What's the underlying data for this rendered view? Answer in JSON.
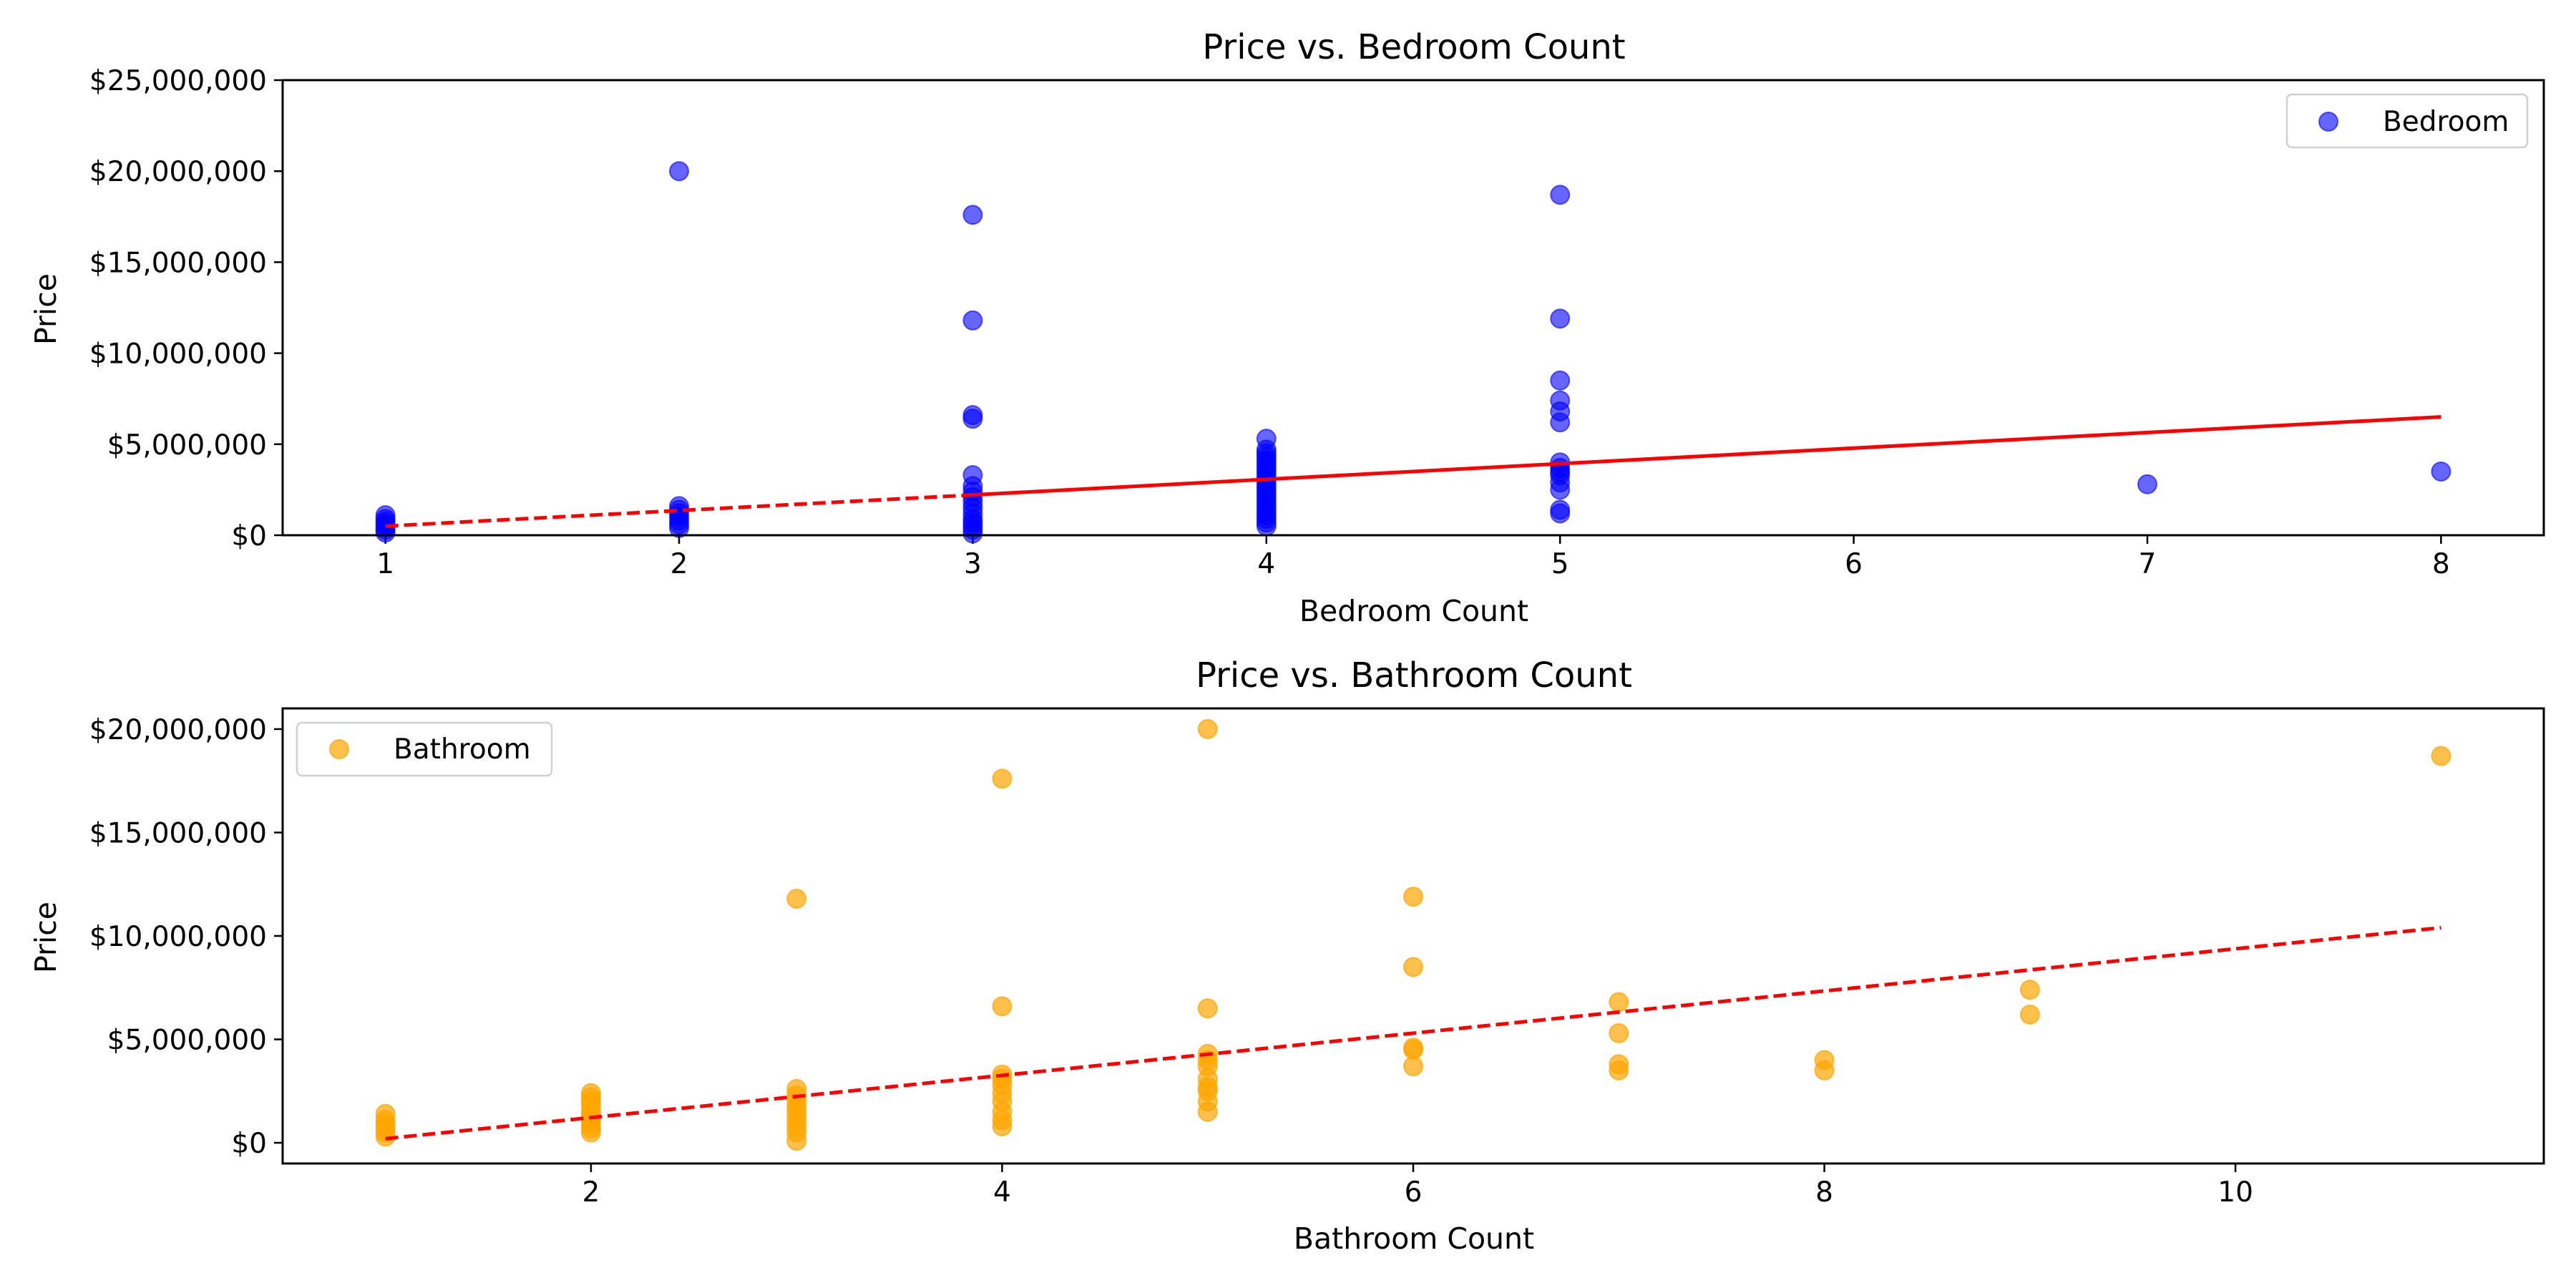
{
  "chart_data": [
    {
      "type": "scatter",
      "title": "Price vs. Bedroom Count",
      "xlabel": "Bedroom Count",
      "ylabel": "Price",
      "xlim": [
        0.65,
        8.35
      ],
      "ylim": [
        0,
        25000000
      ],
      "xticks": [
        1,
        2,
        3,
        4,
        5,
        6,
        7,
        8
      ],
      "yticks": [
        0,
        5000000,
        10000000,
        15000000,
        20000000,
        25000000
      ],
      "ytick_labels": [
        "$0",
        "$5,000,000",
        "$10,000,000",
        "$15,000,000",
        "$20,000,000",
        "$25,000,000"
      ],
      "grid": false,
      "legend": {
        "position": "top-right",
        "entries": [
          "Bedroom"
        ]
      },
      "series": [
        {
          "name": "Bedroom",
          "color": "#0000ff",
          "x": [
            1,
            1,
            1,
            1,
            1,
            1,
            1,
            2,
            2,
            2,
            2,
            2,
            2,
            2,
            2,
            3,
            3,
            3,
            3,
            3,
            3,
            3,
            3,
            3,
            3,
            3,
            3,
            3,
            3,
            3,
            3,
            4,
            4,
            4,
            4,
            4,
            4,
            4,
            4,
            4,
            4,
            4,
            4,
            4,
            4,
            4,
            4,
            4,
            4,
            4,
            4,
            4,
            4,
            4,
            5,
            5,
            5,
            5,
            5,
            5,
            5,
            5,
            5,
            5,
            5,
            5,
            5,
            5,
            7,
            8
          ],
          "y": [
            1100000,
            900000,
            750000,
            600000,
            450000,
            300000,
            150000,
            20000000,
            1600000,
            1400000,
            1200000,
            1000000,
            800000,
            600000,
            400000,
            17600000,
            11800000,
            6600000,
            6400000,
            3300000,
            2700000,
            2400000,
            2100000,
            1800000,
            1500000,
            1200000,
            900000,
            700000,
            500000,
            300000,
            100000,
            5300000,
            4700000,
            4500000,
            4300000,
            4100000,
            3900000,
            3700000,
            3500000,
            3300000,
            3100000,
            2900000,
            2700000,
            2500000,
            2300000,
            2100000,
            1900000,
            1700000,
            1500000,
            1300000,
            1100000,
            900000,
            700000,
            500000,
            18700000,
            11900000,
            8500000,
            7400000,
            6800000,
            6200000,
            4000000,
            3700000,
            3500000,
            3300000,
            2900000,
            2500000,
            1400000,
            1200000,
            2800000,
            3500000
          ]
        }
      ],
      "trend_line": {
        "color": "#ff0000",
        "x": [
          1,
          8
        ],
        "y": [
          500000,
          6500000
        ]
      }
    },
    {
      "type": "scatter",
      "title": "Price vs. Bathroom Count",
      "xlabel": "Bathroom Count",
      "ylabel": "Price",
      "xlim": [
        0.5,
        11.5
      ],
      "ylim": [
        -1000000,
        21000000
      ],
      "xticks": [
        2,
        4,
        6,
        8,
        10
      ],
      "yticks": [
        0,
        5000000,
        10000000,
        15000000,
        20000000
      ],
      "ytick_labels": [
        "$0",
        "$5,000,000",
        "$10,000,000",
        "$15,000,000",
        "$20,000,000"
      ],
      "grid": false,
      "legend": {
        "position": "top-left",
        "entries": [
          "Bathroom"
        ]
      },
      "series": [
        {
          "name": "Bathroom",
          "color": "#ffa500",
          "x": [
            1,
            1,
            1,
            1,
            1,
            1,
            2,
            2,
            2,
            2,
            2,
            2,
            2,
            2,
            2,
            2,
            3,
            3,
            3,
            3,
            3,
            3,
            3,
            3,
            3,
            3,
            4,
            4,
            4,
            4,
            4,
            4,
            4,
            4,
            4,
            4,
            5,
            5,
            5,
            5,
            5,
            5,
            5,
            5,
            5,
            5,
            6,
            6,
            6,
            6,
            6,
            7,
            7,
            7,
            7,
            8,
            8,
            9,
            9,
            11
          ],
          "y": [
            1400000,
            1100000,
            900000,
            700000,
            500000,
            300000,
            2400000,
            2200000,
            2000000,
            1800000,
            1500000,
            1300000,
            1100000,
            900000,
            700000,
            500000,
            11800000,
            2600000,
            2300000,
            2000000,
            1700000,
            1400000,
            1100000,
            800000,
            500000,
            100000,
            17600000,
            6600000,
            3300000,
            3100000,
            2800000,
            2400000,
            2000000,
            1500000,
            1100000,
            800000,
            20000000,
            6500000,
            4300000,
            4000000,
            3700000,
            3100000,
            2700000,
            2500000,
            2000000,
            1500000,
            11900000,
            8500000,
            4600000,
            4500000,
            3700000,
            6800000,
            5300000,
            3800000,
            3500000,
            4000000,
            3500000,
            7400000,
            6200000,
            18700000
          ]
        }
      ],
      "trend_line": {
        "color": "#ff0000",
        "x": [
          1,
          11
        ],
        "y": [
          200000,
          10400000
        ]
      }
    }
  ]
}
